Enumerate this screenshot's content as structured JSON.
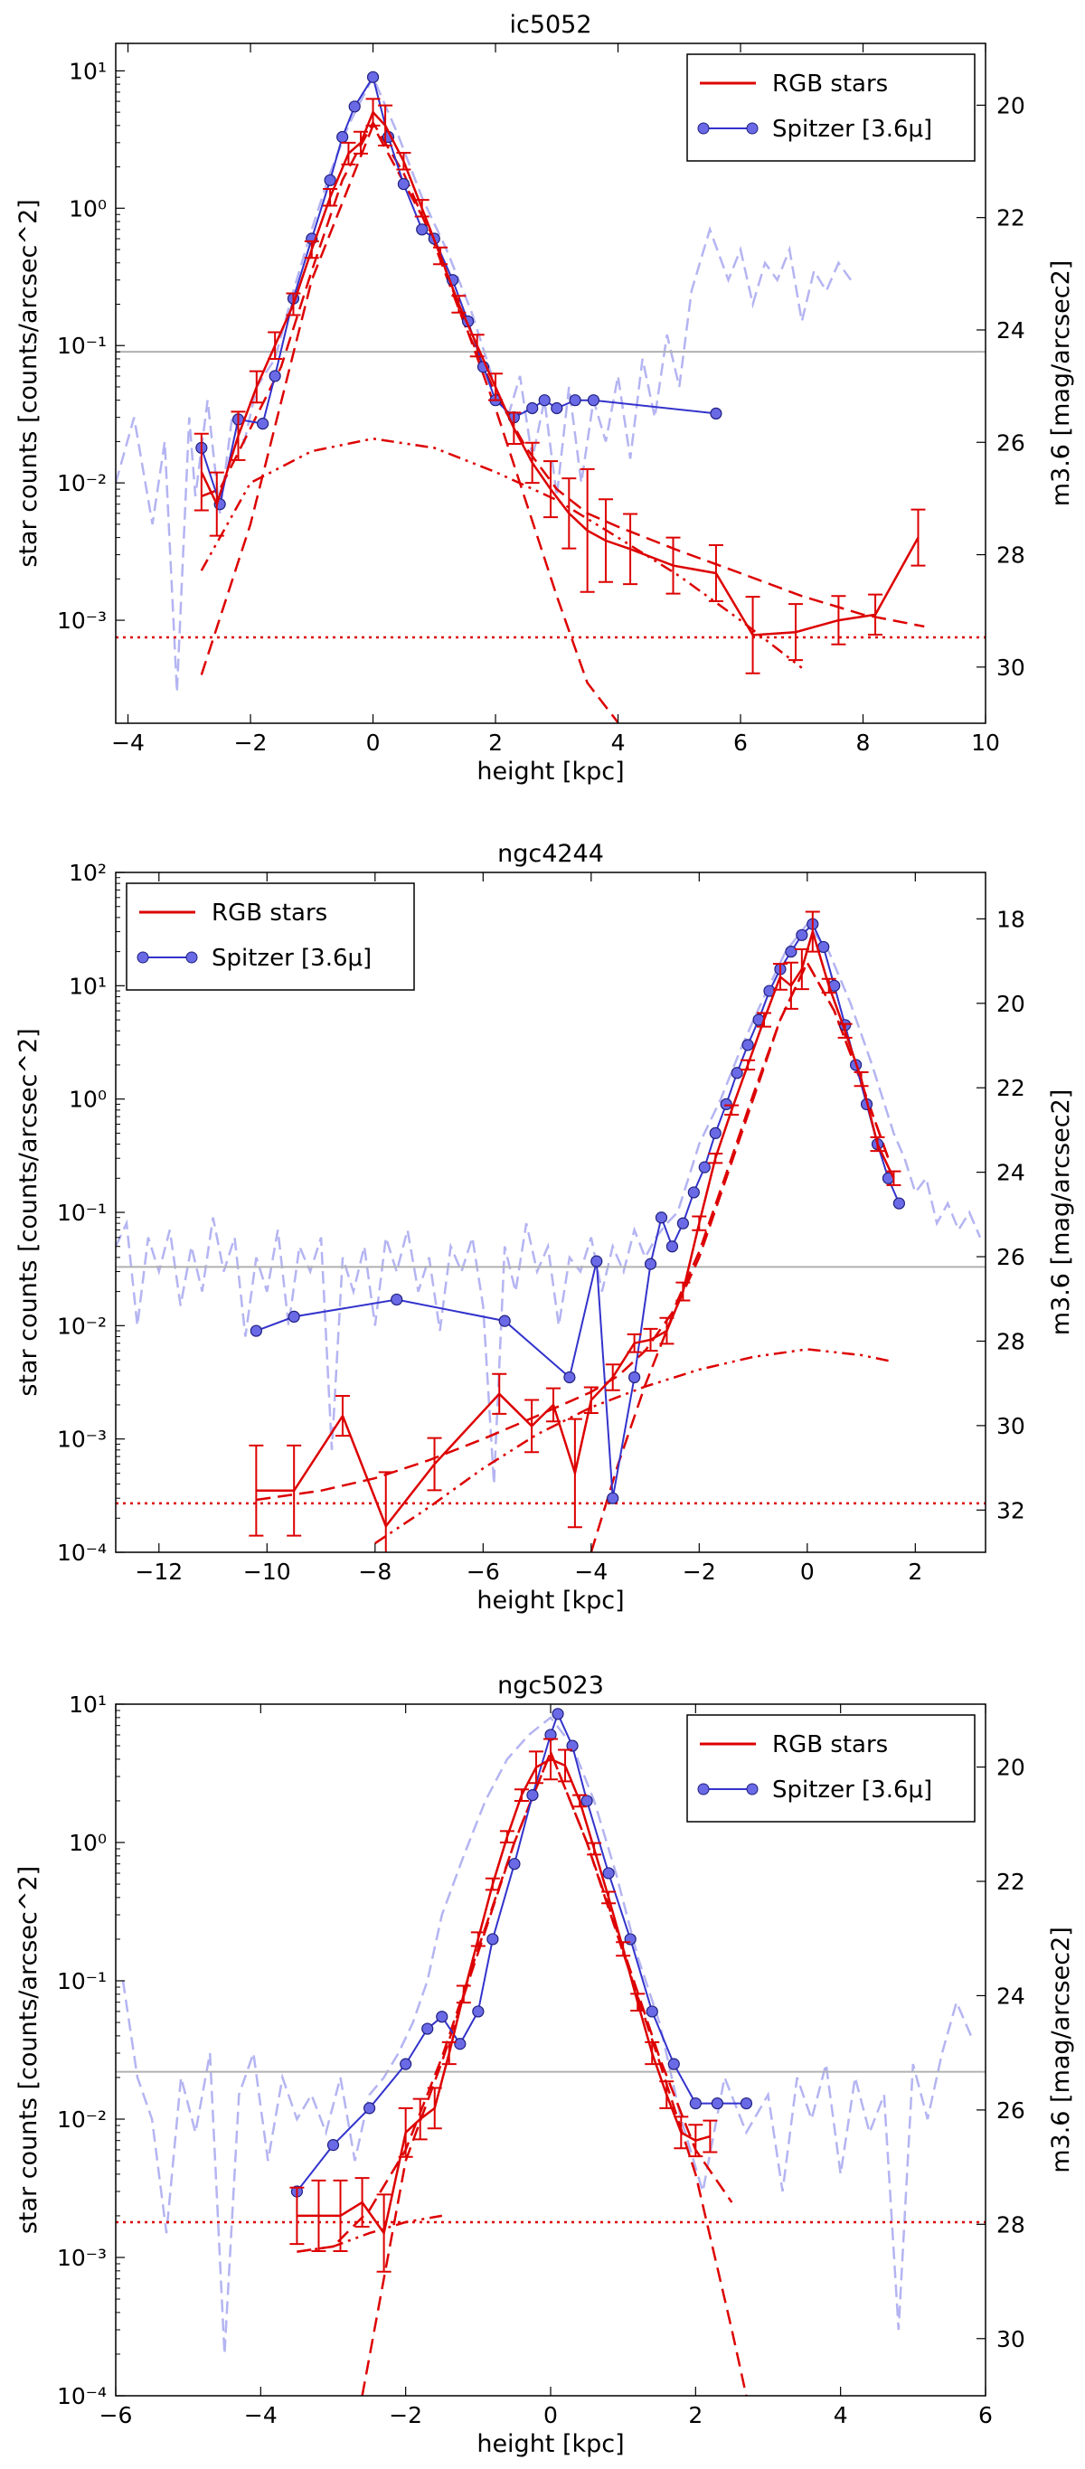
{
  "legend_labels": {
    "rgb": "RGB stars",
    "spitzer": "Spitzer [3.6μ]"
  },
  "colors": {
    "rgb": "#dd0000",
    "spitzer": "#3333cc",
    "spitzer_dashed": "#b4b4f2",
    "grey_line": "#b0b0b0"
  },
  "chart_data": [
    {
      "type": "line",
      "title": "ic5052",
      "xlabel": "height [kpc]",
      "ylabel": "star counts [counts/arcsec^2]",
      "y2label": "m3.6 [mag/arcsec2]",
      "xlim": [
        -4.2,
        10
      ],
      "ylim_log10": [
        -3.75,
        1.2
      ],
      "y2_ticks": [
        20,
        22,
        24,
        26,
        28,
        30
      ],
      "xticks": [
        -4,
        -2,
        0,
        2,
        4,
        6,
        8,
        10
      ],
      "yticks_exp": [
        -3,
        -2,
        -1,
        0,
        1
      ],
      "legend_position": "top-right",
      "grey_hline": 0.09,
      "background_level": 0.00075,
      "rgb": {
        "x": [
          -2.8,
          -2.55,
          -2.2,
          -1.9,
          -1.6,
          -1.3,
          -1.0,
          -0.7,
          -0.4,
          -0.2,
          0.0,
          0.2,
          0.5,
          0.8,
          1.1,
          1.4,
          1.7,
          2.0,
          2.3,
          2.6,
          2.9,
          3.2,
          3.5,
          3.8,
          4.2,
          4.9,
          5.6,
          6.2,
          6.9,
          7.6,
          8.2,
          8.9
        ],
        "y": [
          0.012,
          0.007,
          0.022,
          0.05,
          0.1,
          0.2,
          0.5,
          1.2,
          2.5,
          3.0,
          5.0,
          4.0,
          2.2,
          1.0,
          0.45,
          0.2,
          0.1,
          0.05,
          0.025,
          0.014,
          0.009,
          0.006,
          0.0045,
          0.0038,
          0.0033,
          0.0025,
          0.0022,
          0.00078,
          0.00082,
          0.001,
          0.0011,
          0.004
        ],
        "err_factor": [
          1.9,
          1.7,
          1.5,
          1.3,
          1.25,
          1.2,
          1.15,
          1.15,
          1.2,
          1.2,
          1.25,
          1.4,
          1.15,
          1.15,
          1.15,
          1.15,
          1.2,
          1.25,
          1.3,
          1.4,
          1.6,
          1.8,
          2.8,
          2.0,
          1.8,
          1.6,
          1.6,
          1.9,
          1.6,
          1.5,
          1.4,
          1.6
        ]
      },
      "spitzer": {
        "x": [
          -2.8,
          -2.5,
          -2.2,
          -1.8,
          -1.6,
          -1.3,
          -1.0,
          -0.7,
          -0.5,
          -0.3,
          0.0,
          0.25,
          0.5,
          0.8,
          1.0,
          1.3,
          1.55,
          1.8,
          2.0,
          2.3,
          2.6,
          2.8,
          3.0,
          3.3,
          3.6,
          5.6
        ],
        "y": [
          0.018,
          0.007,
          0.029,
          0.027,
          0.06,
          0.22,
          0.6,
          1.6,
          3.3,
          5.5,
          9.0,
          3.3,
          1.5,
          0.7,
          0.6,
          0.3,
          0.15,
          0.07,
          0.04,
          0.03,
          0.035,
          0.04,
          0.035,
          0.04,
          0.04,
          0.032
        ]
      },
      "model_total": {
        "x": [
          -2.8,
          -2.5,
          -2.0,
          -1.5,
          -1.0,
          -0.5,
          0.0,
          0.5,
          1.0,
          1.5,
          2.0,
          2.5,
          3.0,
          3.5,
          4.0,
          5.0,
          6.0,
          7.0,
          8.0,
          9.0
        ],
        "y": [
          0.008,
          0.009,
          0.025,
          0.07,
          0.35,
          1.6,
          4.2,
          1.8,
          0.55,
          0.14,
          0.045,
          0.018,
          0.009,
          0.006,
          0.0048,
          0.0032,
          0.0022,
          0.0015,
          0.0011,
          0.0009
        ]
      },
      "model_thin": {
        "x": [
          -2.8,
          -2.0,
          -1.0,
          0.0,
          1.0,
          2.0,
          3.0,
          3.5,
          4.0
        ],
        "y": [
          0.0004,
          0.005,
          0.3,
          4.0,
          0.6,
          0.035,
          0.0015,
          0.00035,
          0.00018
        ]
      },
      "model_thick": {
        "x": [
          -2.8,
          -2.0,
          -1.0,
          0.0,
          1.0,
          2.0,
          3.0,
          4.0,
          5.0,
          6.0,
          7.0
        ],
        "y": [
          0.0023,
          0.01,
          0.017,
          0.021,
          0.018,
          0.012,
          0.0075,
          0.004,
          0.0021,
          0.001,
          0.00045
        ]
      },
      "spitzer_dashed": {
        "x": [
          -4.2,
          -3.9,
          -3.6,
          -3.4,
          -3.2,
          -3.0,
          -2.9,
          -2.7,
          -2.5,
          -2.3,
          -2.1,
          -1.9,
          -1.6,
          -1.3,
          -1.0,
          -0.7,
          -0.4,
          0.0,
          0.4,
          0.8,
          1.2,
          1.6,
          2.0,
          2.2,
          2.4,
          2.6,
          2.8,
          3.0,
          3.2,
          3.4,
          3.6,
          3.8,
          4.0,
          4.2,
          4.4,
          4.6,
          4.8,
          5.0,
          5.2,
          5.5,
          5.8,
          6.0,
          6.2,
          6.4,
          6.6,
          6.8,
          7.0,
          7.2,
          7.4,
          7.6,
          7.8
        ],
        "y": [
          0.01,
          0.03,
          0.005,
          0.02,
          0.0003,
          0.03,
          0.008,
          0.04,
          0.006,
          0.03,
          0.02,
          0.05,
          0.08,
          0.25,
          0.7,
          1.8,
          4.0,
          9.0,
          3.5,
          1.2,
          0.5,
          0.18,
          0.05,
          0.03,
          0.06,
          0.015,
          0.04,
          0.008,
          0.05,
          0.01,
          0.04,
          0.02,
          0.06,
          0.015,
          0.08,
          0.03,
          0.12,
          0.05,
          0.25,
          0.7,
          0.3,
          0.5,
          0.2,
          0.4,
          0.3,
          0.5,
          0.15,
          0.35,
          0.25,
          0.4,
          0.3
        ]
      }
    },
    {
      "type": "line",
      "title": "ngc4244",
      "xlabel": "height [kpc]",
      "ylabel": "star counts [counts/arcsec^2]",
      "y2label": "m3.6 [mag/arcsec2]",
      "xlim": [
        -12.8,
        3.3
      ],
      "ylim_log10": [
        -4,
        2
      ],
      "y2_ticks": [
        18,
        20,
        22,
        24,
        26,
        28,
        30,
        32
      ],
      "xticks": [
        -12,
        -10,
        -8,
        -6,
        -4,
        -2,
        0,
        2
      ],
      "yticks_exp": [
        -4,
        -3,
        -2,
        -1,
        0,
        1,
        2
      ],
      "legend_position": "top-left",
      "grey_hline": 0.033,
      "background_level": 0.00027,
      "rgb": {
        "x": [
          -10.2,
          -9.5,
          -8.6,
          -7.8,
          -6.9,
          -5.7,
          -5.1,
          -4.7,
          -4.3,
          -4.0,
          -3.6,
          -3.2,
          -2.9,
          -2.6,
          -2.3,
          -2.0,
          -1.7,
          -1.4,
          -1.1,
          -0.8,
          -0.5,
          -0.3,
          -0.1,
          0.1,
          0.4,
          0.7,
          1.0,
          1.3,
          1.6
        ],
        "y": [
          0.00035,
          0.00035,
          0.0016,
          0.00017,
          0.0006,
          0.0025,
          0.0013,
          0.002,
          0.0005,
          0.0022,
          0.0035,
          0.007,
          0.0075,
          0.009,
          0.02,
          0.08,
          0.3,
          0.8,
          2.0,
          5.0,
          12.0,
          10.0,
          14.0,
          30.0,
          10.0,
          4.0,
          1.5,
          0.4,
          0.2
        ],
        "err_factor": [
          2.5,
          2.5,
          1.5,
          3.0,
          1.7,
          1.5,
          1.7,
          1.4,
          3.0,
          1.3,
          1.3,
          1.2,
          1.25,
          1.3,
          1.2,
          1.15,
          1.1,
          1.1,
          1.1,
          1.15,
          1.3,
          1.6,
          1.5,
          1.5,
          1.15,
          1.15,
          1.15,
          1.15,
          1.15
        ]
      },
      "spitzer": {
        "x": [
          -10.2,
          -9.5,
          -7.6,
          -5.6,
          -4.4,
          -3.9,
          -3.6,
          -3.2,
          -2.9,
          -2.7,
          -2.5,
          -2.3,
          -2.1,
          -1.9,
          -1.7,
          -1.5,
          -1.3,
          -1.1,
          -0.9,
          -0.7,
          -0.5,
          -0.3,
          -0.1,
          0.1,
          0.3,
          0.5,
          0.7,
          0.9,
          1.1,
          1.3,
          1.5,
          1.7
        ],
        "y": [
          0.009,
          0.012,
          0.017,
          0.011,
          0.0035,
          0.037,
          0.0003,
          0.0035,
          0.035,
          0.09,
          0.05,
          0.08,
          0.15,
          0.25,
          0.5,
          0.9,
          1.7,
          3.0,
          5.0,
          9.0,
          14.0,
          20.0,
          28.0,
          35.0,
          22.0,
          10.0,
          4.5,
          2.0,
          0.9,
          0.4,
          0.2,
          0.12
        ]
      },
      "model_total": {
        "x": [
          -10.2,
          -9.0,
          -8.0,
          -7.0,
          -6.0,
          -5.0,
          -4.0,
          -3.5,
          -3.0,
          -2.5,
          -2.0,
          -1.5,
          -1.0,
          -0.5,
          0.0,
          0.5,
          1.0,
          1.5
        ],
        "y": [
          0.00029,
          0.00035,
          0.00045,
          0.00065,
          0.001,
          0.0016,
          0.0026,
          0.0036,
          0.006,
          0.013,
          0.045,
          0.22,
          1.1,
          5.0,
          16.0,
          6.0,
          1.4,
          0.3
        ]
      },
      "model_thin": {
        "x": [
          -4.0,
          -3.5,
          -3.0,
          -2.5,
          -2.0,
          -1.5,
          -1.0,
          -0.5,
          0.0,
          0.5,
          1.0,
          1.5
        ],
        "y": [
          0.0001,
          0.0006,
          0.003,
          0.012,
          0.04,
          0.2,
          1.0,
          5.0,
          16.0,
          6.0,
          1.4,
          0.3
        ]
      },
      "model_thick": {
        "x": [
          -8.0,
          -7.0,
          -6.0,
          -5.0,
          -4.0,
          -3.0,
          -2.0,
          -1.0,
          0.0,
          1.0,
          1.6
        ],
        "y": [
          0.00012,
          0.00025,
          0.00055,
          0.0011,
          0.0019,
          0.0029,
          0.0041,
          0.0053,
          0.0062,
          0.0055,
          0.0048
        ]
      },
      "spitzer_dashed": {
        "x": [
          -12.8,
          -12.6,
          -12.4,
          -12.2,
          -12.0,
          -11.8,
          -11.6,
          -11.4,
          -11.2,
          -11.0,
          -10.8,
          -10.6,
          -10.4,
          -10.2,
          -10.0,
          -9.8,
          -9.6,
          -9.4,
          -9.2,
          -9.0,
          -8.8,
          -8.6,
          -8.4,
          -8.2,
          -8.0,
          -7.8,
          -7.6,
          -7.4,
          -7.2,
          -7.0,
          -6.8,
          -6.6,
          -6.4,
          -6.2,
          -6.0,
          -5.8,
          -5.6,
          -5.4,
          -5.2,
          -5.0,
          -4.8,
          -4.6,
          -4.4,
          -4.2,
          -4.0,
          -3.8,
          -3.6,
          -3.4,
          -3.2,
          -3.0,
          -2.8,
          -2.6,
          -2.4,
          -2.2,
          -2.0,
          -1.6,
          -1.2,
          -0.8,
          -0.4,
          0.0,
          0.4,
          0.8,
          1.2,
          1.6,
          1.8,
          2.0,
          2.2,
          2.4,
          2.6,
          2.8,
          3.0,
          3.2
        ],
        "y": [
          0.05,
          0.08,
          0.01,
          0.06,
          0.03,
          0.07,
          0.015,
          0.05,
          0.02,
          0.09,
          0.03,
          0.06,
          0.008,
          0.04,
          0.02,
          0.07,
          0.01,
          0.05,
          0.03,
          0.06,
          0.0008,
          0.04,
          0.02,
          0.05,
          0.01,
          0.06,
          0.03,
          0.07,
          0.02,
          0.04,
          0.009,
          0.05,
          0.03,
          0.06,
          0.015,
          0.0004,
          0.05,
          0.02,
          0.08,
          0.03,
          0.05,
          0.01,
          0.04,
          0.03,
          0.06,
          0.02,
          0.05,
          0.03,
          0.07,
          0.04,
          0.06,
          0.08,
          0.1,
          0.2,
          0.4,
          1.0,
          3.0,
          8.0,
          20.0,
          35.0,
          20.0,
          7.0,
          2.0,
          0.5,
          0.3,
          0.15,
          0.2,
          0.08,
          0.12,
          0.07,
          0.1,
          0.06
        ]
      }
    },
    {
      "type": "line",
      "title": "ngc5023",
      "xlabel": "height [kpc]",
      "ylabel": "star counts [counts/arcsec^2]",
      "y2label": "m3.6 [mag/arcsec2]",
      "xlim": [
        -6,
        6
      ],
      "ylim_log10": [
        -4,
        1
      ],
      "y2_ticks": [
        20,
        22,
        24,
        26,
        28,
        30
      ],
      "xticks": [
        -6,
        -4,
        -2,
        0,
        2,
        4,
        6
      ],
      "yticks_exp": [
        -4,
        -3,
        -2,
        -1,
        0,
        1
      ],
      "legend_position": "top-right",
      "grey_hline": 0.022,
      "background_level": 0.0018,
      "rgb": {
        "x": [
          -3.5,
          -3.2,
          -2.9,
          -2.6,
          -2.3,
          -2.0,
          -1.8,
          -1.6,
          -1.4,
          -1.2,
          -1.0,
          -0.8,
          -0.6,
          -0.4,
          -0.2,
          0.0,
          0.2,
          0.4,
          0.6,
          0.8,
          1.0,
          1.2,
          1.4,
          1.6,
          1.8,
          2.0,
          2.2
        ],
        "y": [
          0.002,
          0.002,
          0.002,
          0.0025,
          0.0015,
          0.008,
          0.01,
          0.012,
          0.03,
          0.08,
          0.2,
          0.5,
          1.1,
          2.2,
          3.5,
          4.0,
          3.6,
          2.0,
          0.9,
          0.4,
          0.17,
          0.07,
          0.03,
          0.015,
          0.008,
          0.007,
          0.0075
        ],
        "err_factor": [
          1.6,
          1.8,
          1.8,
          1.5,
          1.9,
          1.5,
          1.4,
          1.4,
          1.2,
          1.15,
          1.12,
          1.1,
          1.1,
          1.1,
          1.3,
          1.4,
          1.3,
          1.1,
          1.1,
          1.1,
          1.12,
          1.15,
          1.2,
          1.25,
          1.3,
          1.3,
          1.3
        ]
      },
      "spitzer": {
        "x": [
          -3.5,
          -3.0,
          -2.5,
          -2.0,
          -1.7,
          -1.5,
          -1.25,
          -1.0,
          -0.8,
          -0.5,
          -0.25,
          0.0,
          0.1,
          0.3,
          0.5,
          0.8,
          1.1,
          1.4,
          1.7,
          2.0,
          2.3,
          2.7
        ],
        "y": [
          0.003,
          0.0065,
          0.012,
          0.025,
          0.045,
          0.055,
          0.035,
          0.06,
          0.2,
          0.7,
          2.2,
          6.0,
          8.5,
          5.0,
          2.0,
          0.6,
          0.2,
          0.06,
          0.025,
          0.013,
          0.013,
          0.013
        ]
      },
      "model_total": {
        "x": [
          -3.5,
          -3.0,
          -2.5,
          -2.0,
          -1.5,
          -1.0,
          -0.5,
          0.0,
          0.5,
          1.0,
          1.5,
          2.0,
          2.5
        ],
        "y": [
          0.0011,
          0.0012,
          0.0022,
          0.006,
          0.028,
          0.17,
          1.0,
          4.5,
          1.0,
          0.17,
          0.028,
          0.006,
          0.0025
        ]
      },
      "model_thin": {
        "x": [
          -2.6,
          -2.0,
          -1.5,
          -1.0,
          -0.5,
          0.0,
          0.5,
          1.0,
          1.5,
          2.0,
          2.5,
          2.7
        ],
        "y": [
          0.0001,
          0.005,
          0.026,
          0.16,
          1.0,
          4.5,
          1.0,
          0.16,
          0.026,
          0.004,
          0.0003,
          0.0001
        ]
      },
      "model_thick": {
        "x": [
          -3.5,
          -3.0,
          -2.5,
          -2.0,
          -1.5
        ],
        "y": [
          0.0011,
          0.0012,
          0.0015,
          0.0018,
          0.002
        ]
      },
      "spitzer_dashed": {
        "x": [
          -5.9,
          -5.7,
          -5.5,
          -5.3,
          -5.1,
          -4.9,
          -4.7,
          -4.5,
          -4.3,
          -4.1,
          -3.9,
          -3.7,
          -3.5,
          -3.3,
          -3.1,
          -2.9,
          -2.7,
          -2.5,
          -2.3,
          -2.1,
          -1.9,
          -1.7,
          -1.5,
          -1.2,
          -0.9,
          -0.6,
          -0.3,
          0.0,
          0.3,
          0.6,
          0.9,
          1.2,
          1.5,
          1.8,
          2.1,
          2.4,
          2.7,
          3.0,
          3.2,
          3.4,
          3.6,
          3.8,
          4.0,
          4.2,
          4.4,
          4.6,
          4.8,
          5.0,
          5.2,
          5.4,
          5.6,
          5.8
        ],
        "y": [
          0.1,
          0.02,
          0.01,
          0.0015,
          0.02,
          0.008,
          0.03,
          0.0002,
          0.015,
          0.03,
          0.005,
          0.02,
          0.01,
          0.015,
          0.008,
          0.02,
          0.005,
          0.015,
          0.02,
          0.03,
          0.05,
          0.1,
          0.3,
          0.8,
          2.0,
          4.0,
          6.0,
          8.0,
          5.0,
          2.0,
          0.6,
          0.15,
          0.05,
          0.01,
          0.003,
          0.02,
          0.008,
          0.015,
          0.003,
          0.02,
          0.01,
          0.025,
          0.004,
          0.02,
          0.008,
          0.015,
          0.0003,
          0.025,
          0.01,
          0.03,
          0.07,
          0.04
        ]
      }
    }
  ]
}
